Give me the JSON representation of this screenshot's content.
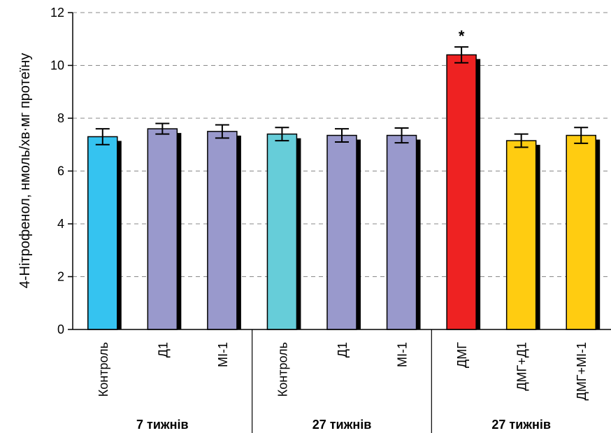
{
  "chart_data": {
    "type": "bar",
    "title": "",
    "xlabel": "",
    "ylabel": "4-Нітрофенол, нмоль/хв·мг протеїну",
    "ylim": [
      0,
      12
    ],
    "yticks": [
      0,
      2,
      4,
      6,
      8,
      10,
      12
    ],
    "grid": "horizontal-dashed",
    "categories": [
      "Контроль",
      "Д1",
      "МІ-1",
      "Контроль",
      "Д1",
      "МІ-1",
      "ДМГ",
      "ДМГ+Д1",
      "ДМГ+МІ-1"
    ],
    "values": [
      7.3,
      7.6,
      7.5,
      7.4,
      7.35,
      7.35,
      10.4,
      7.15,
      7.35
    ],
    "errors": [
      0.3,
      0.2,
      0.25,
      0.25,
      0.25,
      0.28,
      0.3,
      0.25,
      0.3
    ],
    "colors": [
      "#35c3f0",
      "#9999cc",
      "#9999cc",
      "#66cdd9",
      "#9999cc",
      "#9999cc",
      "#ee2222",
      "#ffcc11",
      "#ffcc11"
    ],
    "annotations": [
      {
        "category_index": 6,
        "text": "*"
      }
    ],
    "groups": [
      {
        "label": "7 тижнів",
        "start": 0,
        "end": 2
      },
      {
        "label": "27 тижнів",
        "start": 3,
        "end": 5
      },
      {
        "label": "27 тижнів",
        "start": 6,
        "end": 8
      }
    ]
  }
}
